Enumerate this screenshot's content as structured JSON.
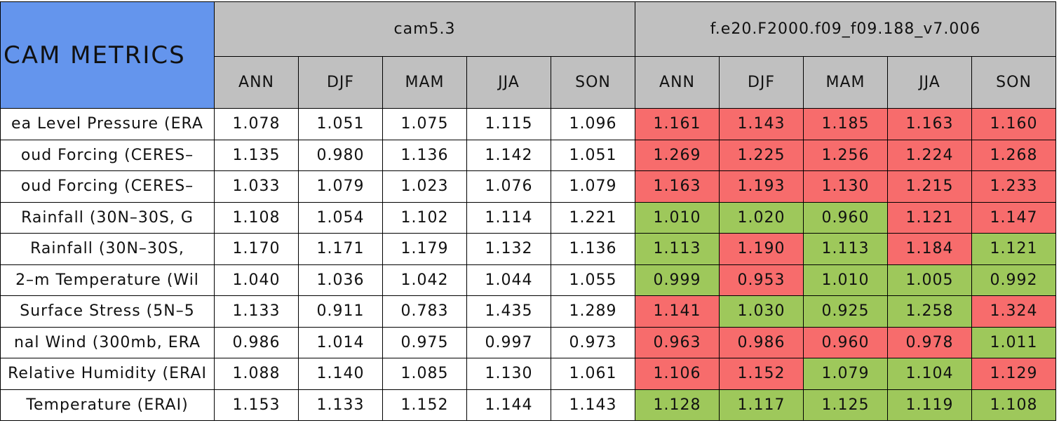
{
  "header": {
    "title": "CAM METRICS",
    "groups": [
      {
        "name": "cam5.3",
        "seasons": [
          "ANN",
          "DJF",
          "MAM",
          "JJA",
          "SON"
        ]
      },
      {
        "name": "f.e20.F2000.f09_f09.188_v7.006",
        "seasons": [
          "ANN",
          "DJF",
          "MAM",
          "JJA",
          "SON"
        ]
      }
    ]
  },
  "colors": {
    "title_bg": "#6495ed",
    "header_bg": "#c0c0c0"
  },
  "rows": [
    {
      "label": "ea Level Pressure (ERA",
      "values": [
        "1.078",
        "1.051",
        "1.075",
        "1.115",
        "1.096",
        "1.161",
        "1.143",
        "1.185",
        "1.163",
        "1.160"
      ],
      "fills": [
        "#ffffff",
        "#ffffff",
        "#ffffff",
        "#ffffff",
        "#ffffff",
        "#f76c6c",
        "#f76c6c",
        "#f76c6c",
        "#f76c6c",
        "#f76c6c"
      ]
    },
    {
      "label": "oud Forcing (CERES–",
      "values": [
        "1.135",
        "0.980",
        "1.136",
        "1.142",
        "1.051",
        "1.269",
        "1.225",
        "1.256",
        "1.224",
        "1.268"
      ],
      "fills": [
        "#ffffff",
        "#ffffff",
        "#ffffff",
        "#ffffff",
        "#ffffff",
        "#f76c6c",
        "#f76c6c",
        "#f76c6c",
        "#f76c6c",
        "#f76c6c"
      ]
    },
    {
      "label": "oud Forcing (CERES–",
      "values": [
        "1.033",
        "1.079",
        "1.023",
        "1.076",
        "1.079",
        "1.163",
        "1.193",
        "1.130",
        "1.215",
        "1.233"
      ],
      "fills": [
        "#ffffff",
        "#ffffff",
        "#ffffff",
        "#ffffff",
        "#ffffff",
        "#f76c6c",
        "#f76c6c",
        "#f76c6c",
        "#f76c6c",
        "#f76c6c"
      ]
    },
    {
      "label": "Rainfall (30N–30S, G",
      "values": [
        "1.108",
        "1.054",
        "1.102",
        "1.114",
        "1.221",
        "1.010",
        "1.020",
        "0.960",
        "1.121",
        "1.147"
      ],
      "fills": [
        "#ffffff",
        "#ffffff",
        "#ffffff",
        "#ffffff",
        "#ffffff",
        "#9ec85b",
        "#9ec85b",
        "#9ec85b",
        "#f76c6c",
        "#f76c6c"
      ]
    },
    {
      "label": "Rainfall (30N–30S,",
      "values": [
        "1.170",
        "1.171",
        "1.179",
        "1.132",
        "1.136",
        "1.113",
        "1.190",
        "1.113",
        "1.184",
        "1.121"
      ],
      "fills": [
        "#ffffff",
        "#ffffff",
        "#ffffff",
        "#ffffff",
        "#ffffff",
        "#9ec85b",
        "#f76c6c",
        "#9ec85b",
        "#f76c6c",
        "#9ec85b"
      ]
    },
    {
      "label": "2–m Temperature (Wil",
      "values": [
        "1.040",
        "1.036",
        "1.042",
        "1.044",
        "1.055",
        "0.999",
        "0.953",
        "1.010",
        "1.005",
        "0.992"
      ],
      "fills": [
        "#ffffff",
        "#ffffff",
        "#ffffff",
        "#ffffff",
        "#ffffff",
        "#9ec85b",
        "#f76c6c",
        "#9ec85b",
        "#9ec85b",
        "#9ec85b"
      ]
    },
    {
      "label": "Surface Stress (5N–5",
      "values": [
        "1.133",
        "0.911",
        "0.783",
        "1.435",
        "1.289",
        "1.141",
        "1.030",
        "0.925",
        "1.258",
        "1.324"
      ],
      "fills": [
        "#ffffff",
        "#ffffff",
        "#ffffff",
        "#ffffff",
        "#ffffff",
        "#f76c6c",
        "#9ec85b",
        "#9ec85b",
        "#9ec85b",
        "#f76c6c"
      ]
    },
    {
      "label": "nal Wind (300mb, ERA",
      "values": [
        "0.986",
        "1.014",
        "0.975",
        "0.997",
        "0.973",
        "0.963",
        "0.986",
        "0.960",
        "0.978",
        "1.011"
      ],
      "fills": [
        "#ffffff",
        "#ffffff",
        "#ffffff",
        "#ffffff",
        "#ffffff",
        "#f76c6c",
        "#f76c6c",
        "#f76c6c",
        "#f76c6c",
        "#9ec85b"
      ]
    },
    {
      "label": "Relative Humidity (ERAI",
      "values": [
        "1.088",
        "1.140",
        "1.085",
        "1.130",
        "1.061",
        "1.106",
        "1.152",
        "1.079",
        "1.104",
        "1.129"
      ],
      "fills": [
        "#ffffff",
        "#ffffff",
        "#ffffff",
        "#ffffff",
        "#ffffff",
        "#f76c6c",
        "#f76c6c",
        "#9ec85b",
        "#9ec85b",
        "#f76c6c"
      ]
    },
    {
      "label": "Temperature (ERAI)",
      "values": [
        "1.153",
        "1.133",
        "1.152",
        "1.144",
        "1.143",
        "1.128",
        "1.117",
        "1.125",
        "1.119",
        "1.108"
      ],
      "fills": [
        "#ffffff",
        "#ffffff",
        "#ffffff",
        "#ffffff",
        "#ffffff",
        "#9ec85b",
        "#9ec85b",
        "#9ec85b",
        "#9ec85b",
        "#9ec85b"
      ]
    }
  ]
}
